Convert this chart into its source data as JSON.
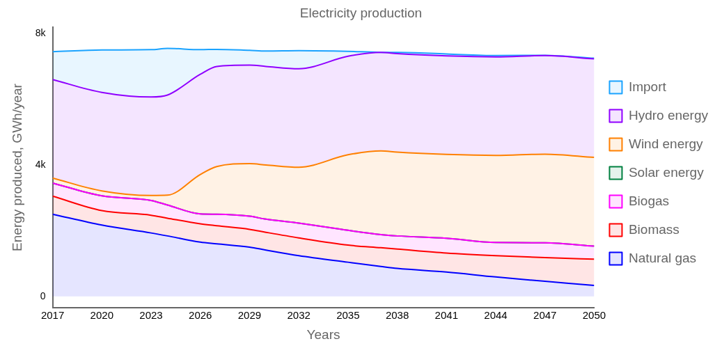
{
  "chart_data": {
    "type": "area",
    "stacked": true,
    "title": "Electricity production",
    "xlabel": "Years",
    "ylabel": "Energy produced, GWh/year",
    "x": [
      2017,
      2020,
      2023,
      2024,
      2026,
      2027,
      2029,
      2030,
      2032,
      2035,
      2037,
      2038,
      2041,
      2044,
      2047,
      2050
    ],
    "xlim": [
      2017,
      2050
    ],
    "xticks": [
      2017,
      2020,
      2023,
      2026,
      2029,
      2032,
      2035,
      2038,
      2041,
      2044,
      2047,
      2050
    ],
    "ylim": [
      -350,
      8200
    ],
    "yticks": [
      {
        "value": 0,
        "label": "0"
      },
      {
        "value": 4000,
        "label": "4k"
      },
      {
        "value": 8000,
        "label": "8k"
      }
    ],
    "grid": false,
    "legend": "right",
    "marker": "none",
    "line_style": "solid",
    "series": [
      {
        "name": "Natural gas",
        "color": "#0000ff",
        "values": [
          2500,
          2170,
          1930,
          1840,
          1650,
          1600,
          1500,
          1410,
          1240,
          1040,
          910,
          850,
          740,
          590,
          460,
          330
        ]
      },
      {
        "name": "Biomass",
        "color": "#ff0000",
        "values": [
          550,
          440,
          540,
          540,
          560,
          550,
          540,
          540,
          540,
          520,
          570,
          590,
          580,
          650,
          720,
          800
        ]
      },
      {
        "name": "Biogas",
        "color": "#ff00ff",
        "values": [
          400,
          450,
          450,
          400,
          300,
          350,
          400,
          400,
          450,
          450,
          400,
          400,
          450,
          400,
          450,
          400
        ]
      },
      {
        "name": "Solar energy",
        "color": "#008040",
        "values": [
          0,
          0,
          0,
          0,
          0,
          0,
          0,
          0,
          0,
          0,
          0,
          0,
          0,
          0,
          0,
          0
        ]
      },
      {
        "name": "Wind energy",
        "color": "#ff8000",
        "values": [
          150,
          150,
          150,
          300,
          1200,
          1450,
          1600,
          1650,
          1700,
          2300,
          2550,
          2550,
          2550,
          2650,
          2700,
          2700
        ]
      },
      {
        "name": "Hydro energy",
        "color": "#9000ff",
        "values": [
          3000,
          3000,
          3000,
          3050,
          3050,
          3050,
          3000,
          3000,
          3000,
          3000,
          3000,
          3000,
          3000,
          3000,
          3000,
          3000
        ]
      },
      {
        "name": "Import",
        "color": "#1aa3ff",
        "values": [
          850,
          1290,
          1440,
          1420,
          750,
          520,
          450,
          470,
          550,
          150,
          0,
          40,
          60,
          40,
          10,
          20
        ]
      }
    ]
  }
}
